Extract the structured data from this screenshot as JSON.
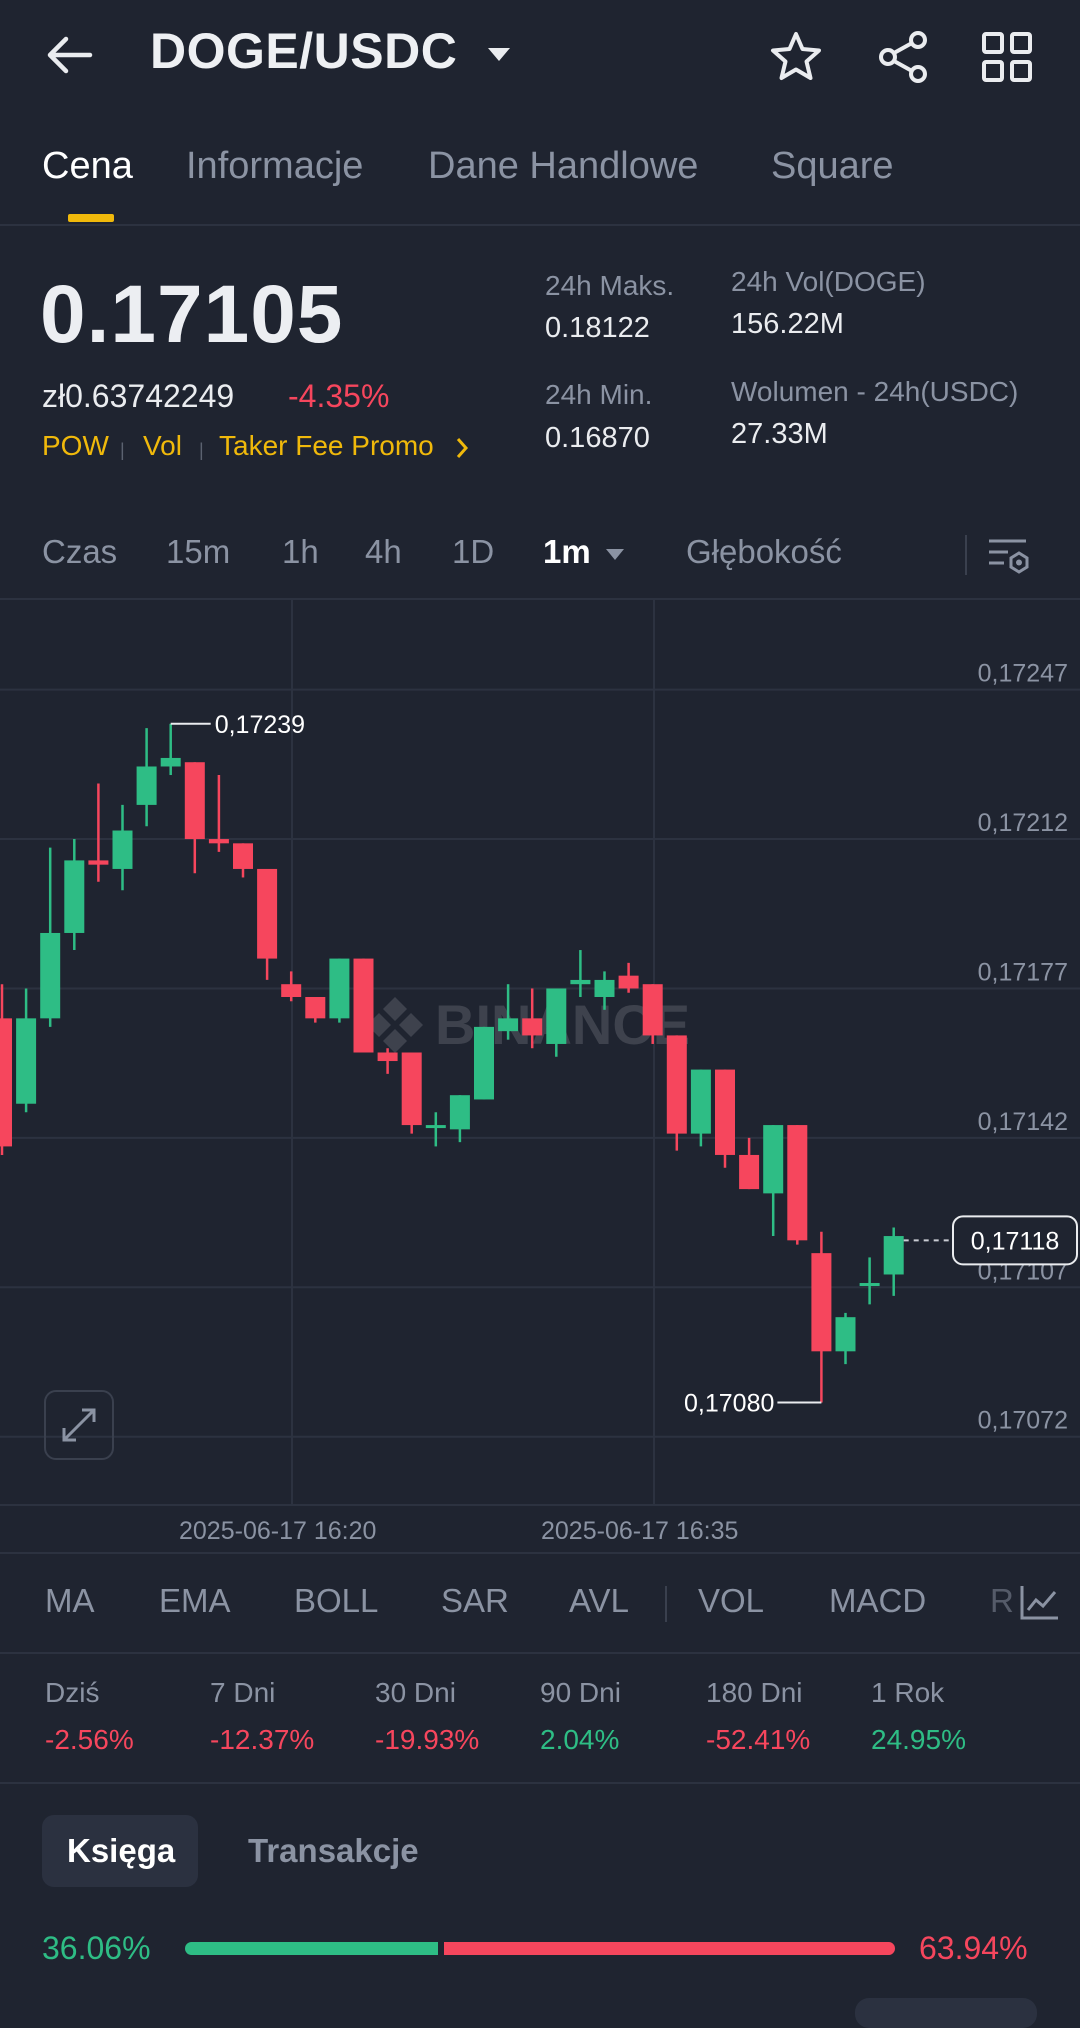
{
  "header": {
    "title": "DOGE/USDC"
  },
  "tabs": [
    "Cena",
    "Informacje",
    "Dane Handlowe",
    "Square"
  ],
  "ticker": {
    "price": "0.17105",
    "fiat_price": "zł0.63742249",
    "change": "-4.35%",
    "tags": [
      "POW",
      "Vol",
      "Taker Fee Promo"
    ],
    "stats": {
      "high_label": "24h Maks.",
      "high_value": "0.18122",
      "low_label": "24h Min.",
      "low_value": "0.16870",
      "vol_base_label": "24h Vol(DOGE)",
      "vol_base_value": "156.22M",
      "vol_quote_label": "Wolumen - 24h(USDC)",
      "vol_quote_value": "27.33M"
    }
  },
  "timeframes": {
    "items": [
      "Czas",
      "15m",
      "1h",
      "4h",
      "1D"
    ],
    "selected": "1m",
    "depth": "Głębokość"
  },
  "chart_data": {
    "type": "candlestick",
    "watermark": "BINANCE",
    "y_ticks": [
      "0,17247",
      "0,17212",
      "0,17177",
      "0,17142",
      "0,17107",
      "0,17072"
    ],
    "ylim": [
      0.17056,
      0.17268
    ],
    "x_ticks": [
      "2025-06-17 16:20",
      "2025-06-17 16:35"
    ],
    "last_price": "0,17118",
    "high_marker": "0,17239",
    "low_marker": "0,17080",
    "candles": [
      [
        0.1717,
        0.1714,
        0.17178,
        0.17138
      ],
      [
        0.1715,
        0.1717,
        0.17177,
        0.17148
      ],
      [
        0.1717,
        0.1719,
        0.1721,
        0.17168
      ],
      [
        0.1719,
        0.17207,
        0.17212,
        0.17186
      ],
      [
        0.17207,
        0.17206,
        0.17225,
        0.17202
      ],
      [
        0.17205,
        0.17214,
        0.1722,
        0.172
      ],
      [
        0.1722,
        0.17229,
        0.17238,
        0.17215
      ],
      [
        0.17229,
        0.17231,
        0.17239,
        0.17227
      ],
      [
        0.1723,
        0.17212,
        0.1723,
        0.17204
      ],
      [
        0.17212,
        0.17211,
        0.17227,
        0.17209
      ],
      [
        0.17211,
        0.17205,
        0.17211,
        0.17203
      ],
      [
        0.17205,
        0.17184,
        0.17205,
        0.17179
      ],
      [
        0.17178,
        0.17175,
        0.17181,
        0.17174
      ],
      [
        0.17175,
        0.1717,
        0.17175,
        0.17169
      ],
      [
        0.1717,
        0.17184,
        0.17184,
        0.17169
      ],
      [
        0.17184,
        0.17162,
        0.17184,
        0.17162
      ],
      [
        0.17162,
        0.1716,
        0.17163,
        0.17157
      ],
      [
        0.17162,
        0.17145,
        0.17162,
        0.17143
      ],
      [
        0.17145,
        0.17145,
        0.17148,
        0.1714
      ],
      [
        0.17144,
        0.17152,
        0.17152,
        0.17141
      ],
      [
        0.17151,
        0.17168,
        0.17168,
        0.17151
      ],
      [
        0.17167,
        0.1717,
        0.17178,
        0.17165
      ],
      [
        0.1717,
        0.17166,
        0.17177,
        0.17163
      ],
      [
        0.17164,
        0.17177,
        0.17177,
        0.17161
      ],
      [
        0.17178,
        0.17179,
        0.17186,
        0.17175
      ],
      [
        0.17175,
        0.17179,
        0.17181,
        0.17172
      ],
      [
        0.1718,
        0.17177,
        0.17183,
        0.17176
      ],
      [
        0.17178,
        0.17166,
        0.17178,
        0.17164
      ],
      [
        0.17166,
        0.17143,
        0.17166,
        0.17139
      ],
      [
        0.17143,
        0.17158,
        0.17158,
        0.1714
      ],
      [
        0.17158,
        0.17138,
        0.17158,
        0.17135
      ],
      [
        0.17138,
        0.1713,
        0.17142,
        0.1713
      ],
      [
        0.17129,
        0.17145,
        0.17145,
        0.17119
      ],
      [
        0.17145,
        0.17118,
        0.17145,
        0.17117
      ],
      [
        0.17115,
        0.17092,
        0.1712,
        0.1708
      ],
      [
        0.17092,
        0.171,
        0.17101,
        0.17089
      ],
      [
        0.17108,
        0.17108,
        0.17114,
        0.17103
      ],
      [
        0.1711,
        0.17119,
        0.17121,
        0.17105
      ]
    ]
  },
  "indicators": [
    "MA",
    "EMA",
    "BOLL",
    "SAR",
    "AVL",
    "VOL",
    "MACD",
    "R"
  ],
  "performance": [
    {
      "label": "Dziś",
      "value": "-2.56%",
      "dir": "neg"
    },
    {
      "label": "7 Dni",
      "value": "-12.37%",
      "dir": "neg"
    },
    {
      "label": "30 Dni",
      "value": "-19.93%",
      "dir": "neg"
    },
    {
      "label": "90 Dni",
      "value": "2.04%",
      "dir": "pos"
    },
    {
      "label": "180 Dni",
      "value": "-52.41%",
      "dir": "neg"
    },
    {
      "label": "1 Rok",
      "value": "24.95%",
      "dir": "pos"
    }
  ],
  "orderbook": {
    "tabs": [
      "Księga",
      "Transakcje"
    ],
    "buy_pct": "36.06%",
    "sell_pct": "63.94%",
    "buy_ratio": 0.3606
  },
  "colors": {
    "up": "#2ebd85",
    "down": "#f6465d",
    "accent": "#f0b90b",
    "bg": "#1f2430"
  }
}
